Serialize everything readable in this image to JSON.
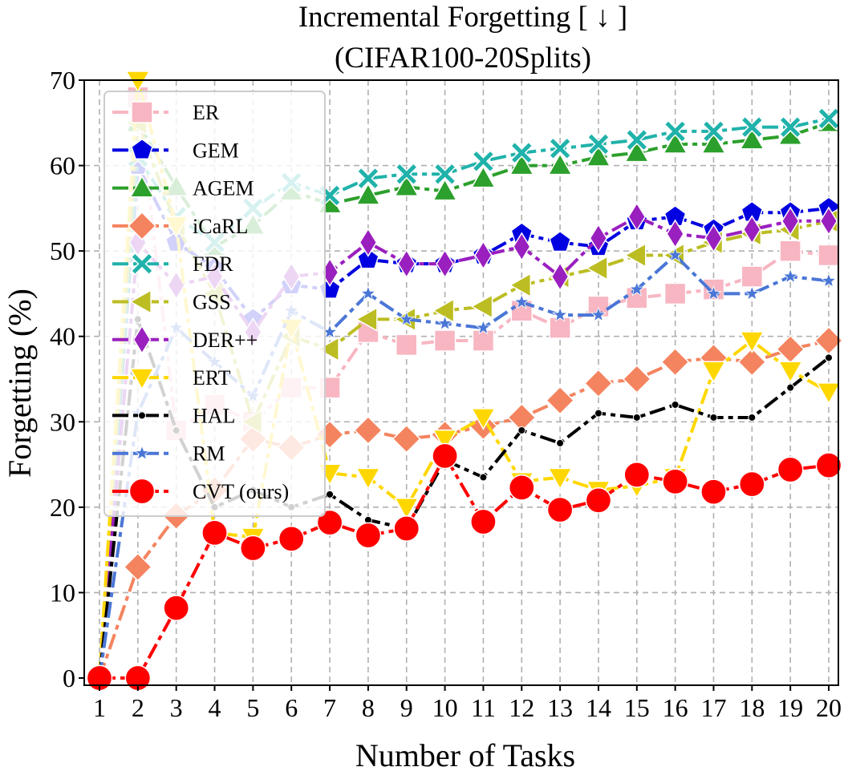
{
  "chart_data": {
    "type": "line",
    "title": "Incremental Forgetting [ ↓ ]",
    "subtitle": "(CIFAR100-20Splits)",
    "xlabel": "Number of Tasks",
    "ylabel": "Forgetting (%)",
    "ylim": [
      0,
      70
    ],
    "grid": true,
    "legend_position": "upper-left",
    "x": [
      1,
      2,
      3,
      4,
      5,
      6,
      7,
      8,
      9,
      10,
      11,
      12,
      13,
      14,
      15,
      16,
      17,
      18,
      19,
      20
    ],
    "x_ticks": [
      "1",
      "2",
      "3",
      "4",
      "5",
      "6",
      "7",
      "8",
      "9",
      "10",
      "11",
      "12",
      "13",
      "14",
      "15",
      "16",
      "17",
      "18",
      "19",
      "20"
    ],
    "y_ticks": [
      "0",
      "10",
      "20",
      "30",
      "40",
      "50",
      "60",
      "70"
    ],
    "series": [
      {
        "name": "ER",
        "color": "#f7b6c2",
        "marker": "square",
        "values": [
          0,
          68,
          29,
          32,
          30,
          34,
          34,
          40.5,
          39,
          39.5,
          39.5,
          43,
          41,
          43.5,
          44.5,
          45,
          45.5,
          47,
          50,
          49.5
        ]
      },
      {
        "name": "GEM",
        "color": "#0000e0",
        "marker": "pentagon",
        "values": [
          0,
          60,
          51,
          48,
          42,
          46,
          45.5,
          49,
          48.5,
          48.5,
          49.5,
          52,
          51,
          50.5,
          53.5,
          54,
          52.5,
          54.5,
          54.5,
          55
        ]
      },
      {
        "name": "AGEM",
        "color": "#2ca02c",
        "marker": "triangle-up",
        "values": [
          0,
          65,
          57.5,
          50.5,
          53,
          57,
          55.5,
          56.5,
          57.5,
          57,
          58.5,
          60,
          60,
          61,
          61.5,
          62.5,
          62.5,
          63,
          63.5,
          65
        ]
      },
      {
        "name": "iCaRL",
        "color": "#f4845f",
        "marker": "diamond",
        "values": [
          0,
          13,
          19,
          22,
          28,
          27,
          28.5,
          29,
          28,
          28.5,
          29.5,
          30.5,
          32.5,
          34.5,
          35,
          37,
          37.5,
          37,
          38.5,
          39.5
        ]
      },
      {
        "name": "FDR",
        "color": "#20b2aa",
        "marker": "x",
        "values": [
          0,
          61,
          54,
          51,
          55,
          58,
          56.5,
          58.5,
          59,
          59,
          60.5,
          61.5,
          62,
          62.5,
          63,
          64,
          64,
          64.5,
          64.5,
          65.5
        ]
      },
      {
        "name": "GSS",
        "color": "#bcbd22",
        "marker": "triangle-left",
        "values": [
          0,
          65,
          53,
          45,
          30,
          40,
          38.5,
          42,
          42,
          43,
          43.5,
          46,
          47,
          48,
          49.5,
          49.5,
          51,
          52,
          52.5,
          53.5
        ]
      },
      {
        "name": "DER++",
        "color": "#9a1fbf",
        "marker": "thin-diamond",
        "values": [
          0,
          51,
          46,
          47,
          40.5,
          47,
          47.5,
          51,
          48.5,
          48.5,
          49.5,
          50.5,
          47,
          51.5,
          54,
          52,
          51.5,
          52.5,
          53.5,
          53.5
        ]
      },
      {
        "name": "ERT",
        "color": "#ffd700",
        "marker": "triangle-down",
        "values": [
          0,
          70,
          53,
          17,
          16.5,
          41,
          24,
          23.5,
          20,
          28,
          30.5,
          23,
          23.5,
          22,
          22.5,
          23.5,
          36,
          39.5,
          36,
          33.5
        ]
      },
      {
        "name": "HAL",
        "color": "#000000",
        "marker": "dot",
        "values": [
          0,
          42,
          29,
          20,
          22,
          20,
          21.5,
          18.5,
          17.5,
          25.5,
          23.5,
          29,
          27.5,
          31,
          30.5,
          32,
          30.5,
          30.5,
          34,
          37.5
        ]
      },
      {
        "name": "RM",
        "color": "#4a76d6",
        "marker": "star",
        "values": [
          0,
          31,
          41,
          37,
          33,
          43,
          40.5,
          45,
          42,
          41.5,
          41,
          44,
          42.5,
          42.5,
          45.5,
          49.5,
          45,
          45,
          47,
          46.5
        ]
      },
      {
        "name": "CVT (ours)",
        "color": "#ff0000",
        "marker": "circle",
        "values": [
          0,
          0,
          8.2,
          17,
          15.2,
          16.3,
          18.2,
          16.7,
          17.5,
          26,
          18.3,
          22.3,
          19.7,
          20.8,
          23.8,
          23,
          21.8,
          22.7,
          24.4,
          24.9
        ]
      }
    ]
  }
}
